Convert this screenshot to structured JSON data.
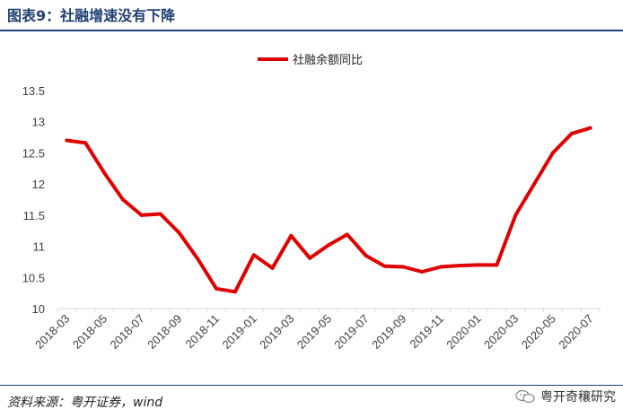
{
  "header": {
    "title": "图表9：社融增速没有下降"
  },
  "footer": {
    "source": "资料来源：粤开证券，wind",
    "watermark": "粤开奇穰研究",
    "watermark_icon": "wechat-icon"
  },
  "colors": {
    "title": "#1f3f73",
    "series": "#e00000",
    "axis": "#d9d9d9",
    "text": "#404040"
  },
  "chart_data": {
    "type": "line",
    "title": "",
    "xlabel": "",
    "ylabel": "",
    "ylim": [
      10,
      13.5
    ],
    "yticks": [
      10,
      10.5,
      11,
      11.5,
      12,
      12.5,
      13,
      13.5
    ],
    "ytick_labels": [
      "10",
      "10.5",
      "11",
      "11.5",
      "12",
      "12.5",
      "13",
      "13.5"
    ],
    "legend_placement": "top-center",
    "grid": false,
    "x": [
      "2018-03",
      "2018-04",
      "2018-05",
      "2018-06",
      "2018-07",
      "2018-08",
      "2018-09",
      "2018-10",
      "2018-11",
      "2018-12",
      "2019-01",
      "2019-02",
      "2019-03",
      "2019-04",
      "2019-05",
      "2019-06",
      "2019-07",
      "2019-08",
      "2019-09",
      "2019-10",
      "2019-11",
      "2019-12",
      "2020-01",
      "2020-02",
      "2020-03",
      "2020-04",
      "2020-05",
      "2020-06",
      "2020-07"
    ],
    "xtick_labels": [
      "2018-03",
      "2018-05",
      "2018-07",
      "2018-09",
      "2018-11",
      "2019-01",
      "2019-03",
      "2019-05",
      "2019-07",
      "2019-09",
      "2019-11",
      "2020-01",
      "2020-03",
      "2020-05",
      "2020-07"
    ],
    "series": [
      {
        "name": "社融余额同比",
        "values": [
          12.7,
          12.66,
          12.18,
          11.75,
          11.5,
          11.52,
          11.22,
          10.8,
          10.32,
          10.27,
          10.86,
          10.65,
          11.17,
          10.81,
          11.02,
          11.19,
          10.85,
          10.68,
          10.67,
          10.59,
          10.67,
          10.69,
          10.7,
          10.7,
          11.5,
          12.0,
          12.5,
          12.81,
          12.9
        ]
      }
    ]
  }
}
